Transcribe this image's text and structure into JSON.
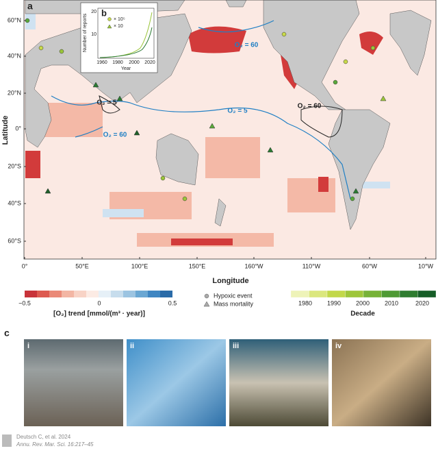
{
  "panel_a": {
    "label": "a",
    "x_label": "Longitude",
    "y_label": "Latitude",
    "lat_ticks": [
      "60°N",
      "40°N",
      "20°N",
      "0°",
      "20°S",
      "40°S",
      "60°S"
    ],
    "lon_ticks": [
      "0°",
      "50°E",
      "100°E",
      "150°E",
      "160°W",
      "110°W",
      "60°W",
      "10°W"
    ],
    "contour_labels": [
      "O₂ = 60",
      "O₂ = 5",
      "O₂ = 60",
      "O₂ = 5",
      "O₂ = 60"
    ]
  },
  "panel_b": {
    "label": "b",
    "y_label": "Number of reports",
    "x_label": "Year",
    "yticks": [
      "10",
      "20"
    ],
    "xticks": [
      "1960",
      "1980",
      "2000",
      "2020"
    ],
    "legend": [
      "× 10⁵",
      "× 10"
    ]
  },
  "legend": {
    "o2_ticks": [
      "−0.5",
      "0",
      "0.5"
    ],
    "o2_label": "[O₂] trend [mmol/(m³ · year)]",
    "markers": [
      "Hypoxic event",
      "Mass mortality"
    ],
    "decade_ticks": [
      "1980",
      "1990",
      "2000",
      "2010",
      "2020"
    ],
    "decade_label": "Decade"
  },
  "panel_c": {
    "label": "c",
    "photos": [
      "i",
      "ii",
      "iii",
      "iv"
    ]
  },
  "footer": {
    "citation": "Deutsch C, et al. 2024",
    "journal": "Annu. Rev. Mar. Sci. 16:217–45"
  }
}
